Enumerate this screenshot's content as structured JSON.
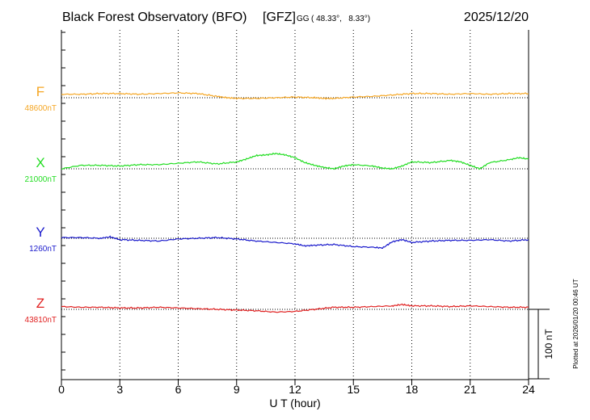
{
  "header": {
    "station": "Black Forest Observatory (BFO)",
    "institute": "[GFZ]",
    "coords_prefix": "GG",
    "coords": "( 48.33°,   8.33°)",
    "date": "2025/12/20"
  },
  "side_note": "Plotted at 2026/01/20 00:46 UT",
  "scale_label": "100 nT",
  "chart_data": {
    "type": "line",
    "title": "Black Forest Observatory (BFO)",
    "xlabel": "U T (hour)",
    "xlim": [
      0,
      24
    ],
    "xticks": [
      "0",
      "3",
      "6",
      "9",
      "12",
      "15",
      "18",
      "21",
      "24"
    ],
    "grid": "vertical dotted every 3 h",
    "scale_bar_nT": 100,
    "series": [
      {
        "name": "F",
        "baseline_label": "48600nT",
        "color": "#f5a623",
        "x": [
          0,
          1,
          2,
          3,
          4,
          5,
          6,
          7,
          8,
          8.5,
          9,
          10,
          11,
          12,
          13,
          13.5,
          14,
          15,
          16,
          17,
          18,
          19,
          20,
          21,
          22,
          23,
          24
        ],
        "y": [
          48605,
          48605,
          48606,
          48606,
          48605,
          48606,
          48607,
          48606,
          48602,
          48600,
          48599,
          48599,
          48600,
          48601,
          48600,
          48599,
          48599,
          48601,
          48602,
          48604,
          48606,
          48606,
          48605,
          48606,
          48605,
          48606,
          48606
        ]
      },
      {
        "name": "X",
        "baseline_label": "21000nT",
        "color": "#22dd22",
        "x": [
          0,
          1,
          2,
          3,
          4,
          5,
          6,
          7,
          8,
          9,
          9.5,
          10,
          10.5,
          11,
          11.5,
          12,
          12.5,
          13,
          13.5,
          14,
          14.5,
          15,
          16,
          16.5,
          17,
          17.5,
          18,
          19,
          20,
          20.5,
          21,
          21.5,
          22,
          23,
          23.5,
          24
        ],
        "y": [
          21000,
          21005,
          21005,
          21004,
          21006,
          21006,
          21008,
          21010,
          21007,
          21010,
          21014,
          21019,
          21020,
          21022,
          21020,
          21016,
          21009,
          21005,
          21002,
          21000,
          21004,
          21006,
          21004,
          21001,
          21000,
          21004,
          21010,
          21009,
          21012,
          21010,
          21005,
          21000,
          21009,
          21013,
          21016,
          21014
        ]
      },
      {
        "name": "Y",
        "baseline_label": "1260nT",
        "color": "#1a1acc",
        "x": [
          0,
          1,
          2,
          2.5,
          3,
          4,
          5,
          6,
          7,
          8,
          9,
          10,
          11,
          12,
          12.5,
          13,
          14,
          15,
          16,
          16.5,
          17,
          17.5,
          18,
          19,
          20,
          21,
          22,
          23,
          24
        ],
        "y": [
          1261,
          1261,
          1260,
          1262,
          1258,
          1257,
          1256,
          1259,
          1260,
          1261,
          1259,
          1256,
          1254,
          1252,
          1249,
          1250,
          1251,
          1248,
          1247,
          1246,
          1255,
          1258,
          1254,
          1256,
          1257,
          1257,
          1258,
          1256,
          1258
        ]
      },
      {
        "name": "Z",
        "baseline_label": "43810nT",
        "color": "#e02020",
        "x": [
          0,
          1,
          2,
          3,
          4,
          5,
          6,
          7,
          8,
          9,
          10,
          11,
          12,
          13,
          14,
          15,
          16,
          17,
          17.5,
          18,
          19,
          20,
          21,
          22,
          23,
          24
        ],
        "y": [
          43814,
          43813,
          43813,
          43812,
          43812,
          43813,
          43812,
          43811,
          43810,
          43809,
          43808,
          43806,
          43807,
          43810,
          43813,
          43813,
          43814,
          43815,
          43817,
          43815,
          43815,
          43814,
          43815,
          43814,
          43813,
          43813
        ]
      }
    ]
  }
}
